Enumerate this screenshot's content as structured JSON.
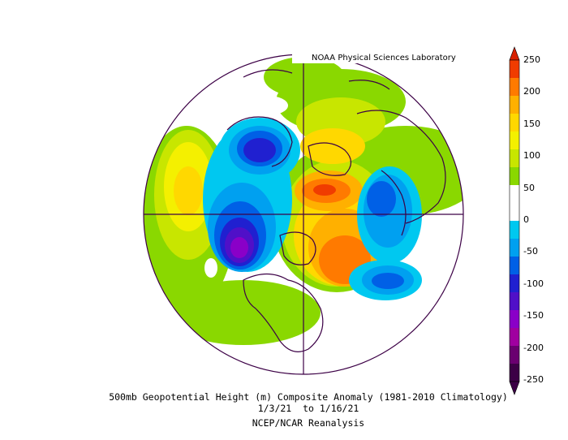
{
  "credit": "NOAA Physical Sciences Laboratory",
  "caption": {
    "line1": "500mb Geopotential Height (m) Composite Anomaly (1981-2010 Climatology)",
    "line2": "1/3/21  to 1/16/21",
    "line3": "NCEP/NCAR Reanalysis"
  },
  "colorbar": {
    "labels": [
      "250",
      "200",
      "150",
      "100",
      "50",
      "0",
      "-50",
      "-100",
      "-150",
      "-200",
      "-250"
    ],
    "colors": [
      "#f03c00",
      "#ff7a00",
      "#ffb000",
      "#ffd800",
      "#f4f000",
      "#c8e600",
      "#8ad800",
      "#ffffff",
      "#ffffff",
      "#00c8f0",
      "#00a0f0",
      "#0060e6",
      "#2020d0",
      "#5010c8",
      "#8a00c8",
      "#a000a0",
      "#6a0070",
      "#3c0046"
    ]
  },
  "anomaly_centers": [
    {
      "name": "alaska-high",
      "sign": "positive"
    },
    {
      "name": "nepacific-low",
      "sign": "negative"
    },
    {
      "name": "siberia-low",
      "sign": "negative"
    },
    {
      "name": "greenland-high",
      "sign": "positive"
    },
    {
      "name": "europe-low",
      "sign": "negative"
    }
  ]
}
